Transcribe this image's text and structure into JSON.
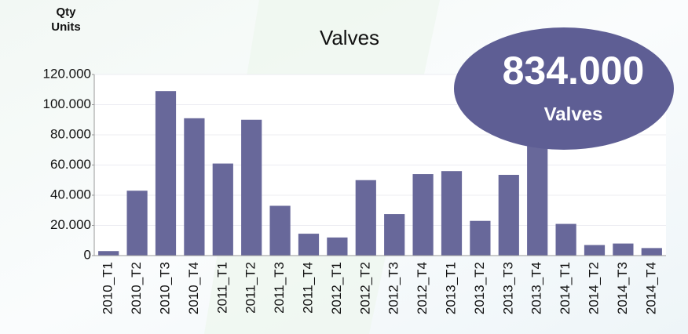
{
  "chart_data": {
    "type": "bar",
    "title": "Valves",
    "ylabel": [
      "Qty",
      "Units"
    ],
    "categories": [
      "2010_T1",
      "2010_T2",
      "2010_T3",
      "2010_T4",
      "2011_T1",
      "2011_T2",
      "2011_T3",
      "2011_T4",
      "2012_T1",
      "2012_T2",
      "2012_T3",
      "2012_T4",
      "2013_T1",
      "2013_T2",
      "2013_T3",
      "2013_T4",
      "2014_T1",
      "2014_T2",
      "2014_T3",
      "2014_T4"
    ],
    "values": [
      3000,
      43000,
      109000,
      91000,
      61000,
      90000,
      33000,
      14500,
      12000,
      50000,
      27500,
      54000,
      56000,
      23000,
      53500,
      72500,
      21000,
      7000,
      8000,
      5000
    ],
    "color": "#68689a",
    "ylim": [
      0,
      120000
    ],
    "yticks": [
      0,
      {
        "value": 20000,
        "label": "20.000"
      },
      {
        "value": 40000,
        "label": "40.000"
      },
      {
        "value": 60000,
        "label": "60.000"
      },
      {
        "value": 80000,
        "label": "80.000"
      },
      {
        "value": 100000,
        "label": "100.000"
      },
      {
        "value": 120000,
        "label": "120.000"
      }
    ],
    "grid": true,
    "annotation": {
      "value": 834000,
      "label": "834.000",
      "text": "Valves",
      "color": "#5e5e94"
    }
  }
}
